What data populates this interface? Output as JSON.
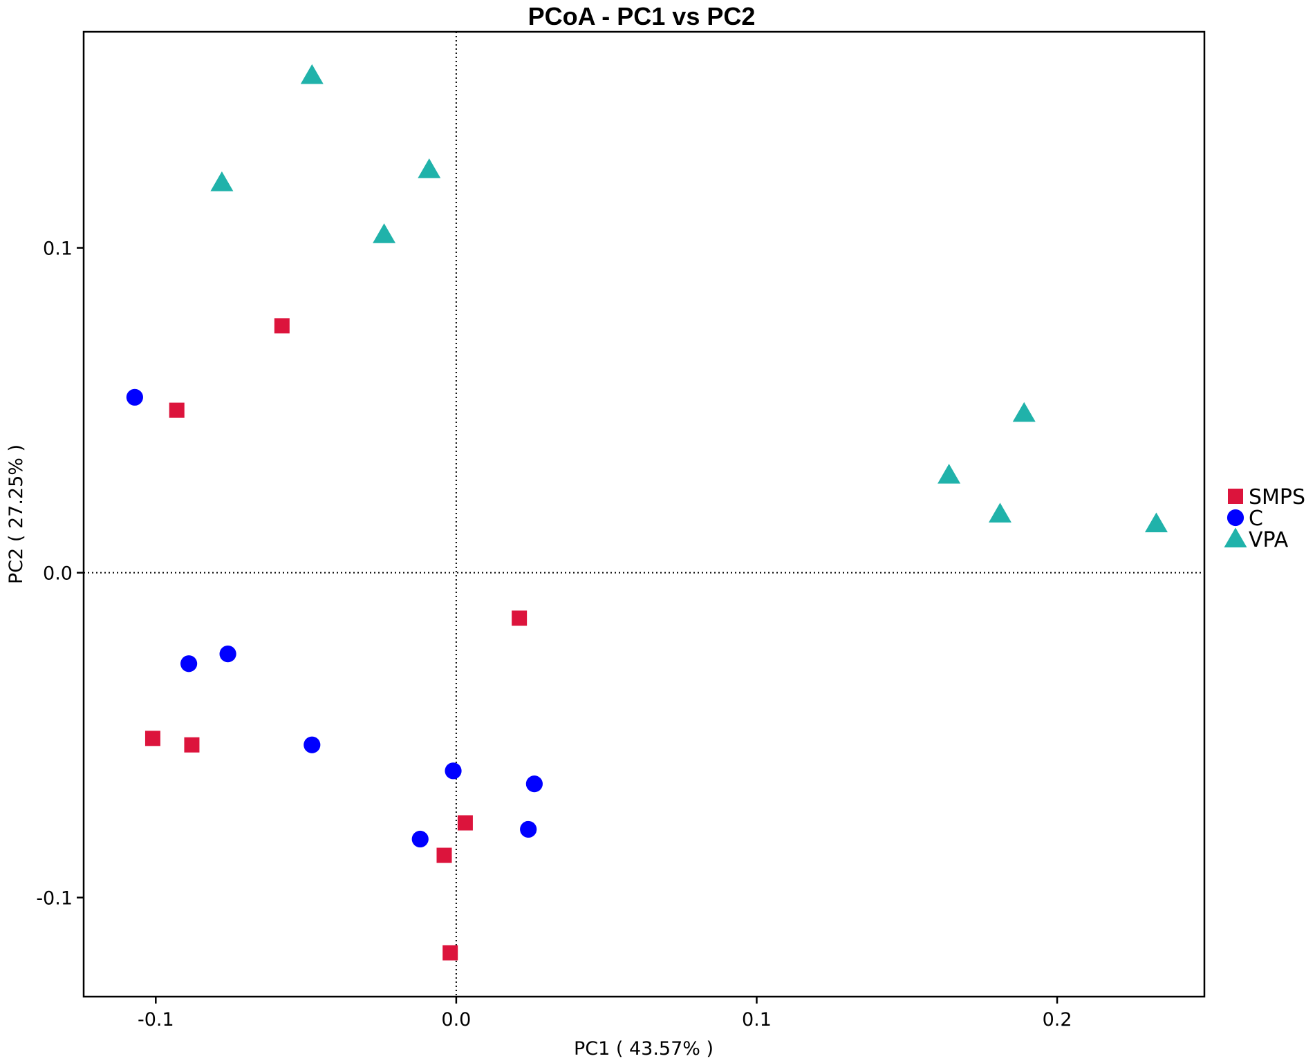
{
  "chart_data": {
    "type": "scatter",
    "title": "PCoA - PC1 vs PC2",
    "xlabel": "PC1 ( 43.57% )",
    "ylabel": "PC2 ( 27.25% )",
    "xlim": [
      -0.124,
      0.249
    ],
    "ylim": [
      -0.1305,
      0.1665
    ],
    "x_ticks": [
      -0.1,
      0.0,
      0.1,
      0.2
    ],
    "x_tick_labels": [
      "-0.1",
      "0.0",
      "0.1",
      "0.2"
    ],
    "y_ticks": [
      -0.1,
      0.0,
      0.1
    ],
    "y_tick_labels": [
      "-0.1",
      "0.0",
      "0.1"
    ],
    "reference_lines": {
      "x": 0,
      "y": 0,
      "style": "dotted"
    },
    "grid": false,
    "legend_position": "right",
    "series": [
      {
        "name": "SMPS",
        "marker": "square",
        "color": "#DC143C",
        "points": [
          [
            -0.058,
            0.076
          ],
          [
            -0.093,
            0.05
          ],
          [
            0.021,
            -0.014
          ],
          [
            -0.101,
            -0.051
          ],
          [
            -0.088,
            -0.053
          ],
          [
            0.003,
            -0.077
          ],
          [
            -0.004,
            -0.087
          ],
          [
            -0.002,
            -0.117
          ]
        ]
      },
      {
        "name": "C",
        "marker": "circle",
        "color": "#0000FF",
        "points": [
          [
            -0.107,
            0.054
          ],
          [
            -0.089,
            -0.028
          ],
          [
            -0.076,
            -0.025
          ],
          [
            -0.048,
            -0.053
          ],
          [
            -0.001,
            -0.061
          ],
          [
            0.026,
            -0.065
          ],
          [
            -0.012,
            -0.082
          ],
          [
            0.024,
            -0.079
          ]
        ]
      },
      {
        "name": "VPA",
        "marker": "triangle",
        "color": "#20B2AA",
        "points": [
          [
            -0.048,
            0.153
          ],
          [
            -0.078,
            0.12
          ],
          [
            -0.009,
            0.124
          ],
          [
            -0.024,
            0.104
          ],
          [
            0.189,
            0.049
          ],
          [
            0.164,
            0.03
          ],
          [
            0.181,
            0.018
          ],
          [
            0.233,
            0.015
          ]
        ]
      }
    ]
  }
}
